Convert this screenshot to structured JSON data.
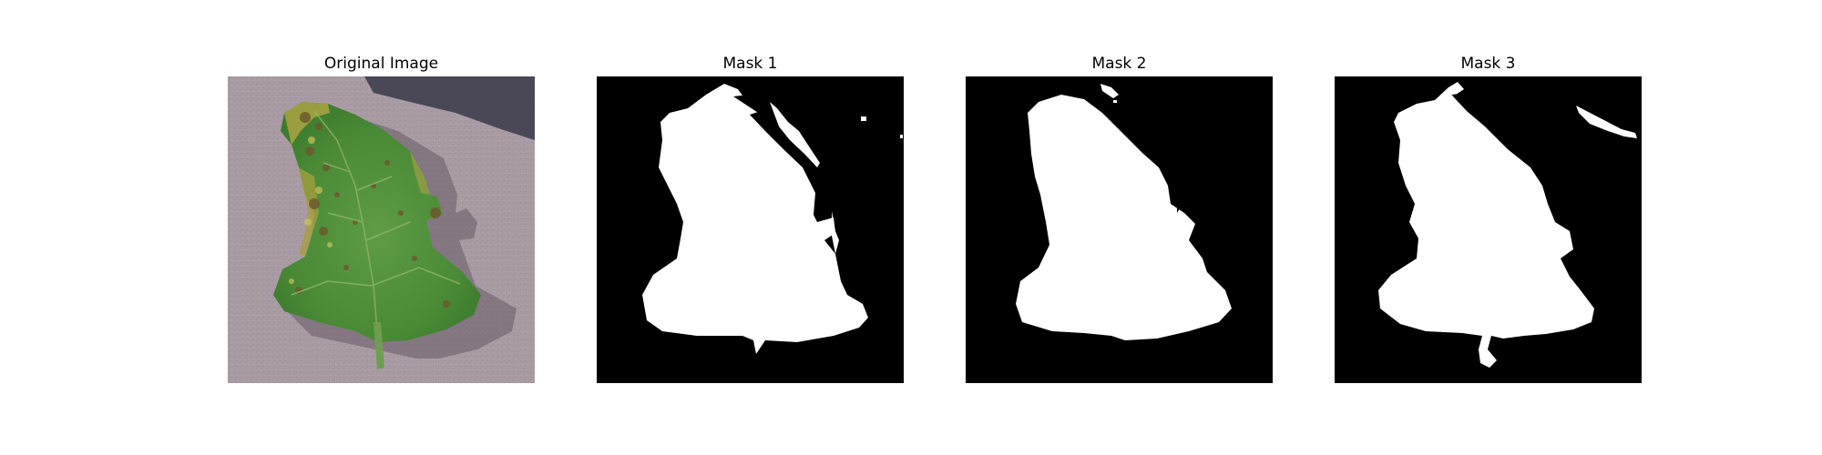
{
  "figure": {
    "panels": [
      {
        "title": "Original Image",
        "kind": "photo"
      },
      {
        "title": "Mask 1",
        "kind": "mask"
      },
      {
        "title": "Mask 2",
        "kind": "mask"
      },
      {
        "title": "Mask 3",
        "kind": "mask"
      }
    ],
    "colors": {
      "background": "#ffffff",
      "mask_background": "#000000",
      "mask_foreground": "#ffffff",
      "surface": "#a89aa3",
      "leaf": "#4f8f3a",
      "shadow": "#3a3a48"
    }
  }
}
